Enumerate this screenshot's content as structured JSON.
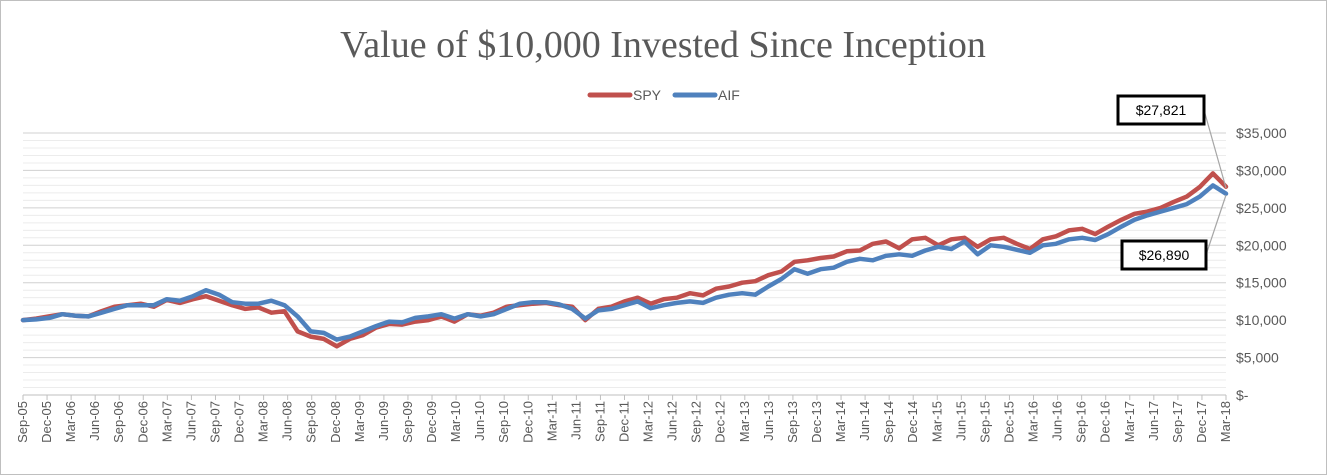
{
  "chart_data": {
    "type": "line",
    "title": "Value of $10,000 Invested Since Inception",
    "xlabel": "",
    "ylabel": "",
    "ylim": [
      0,
      35000
    ],
    "y_tick_labels": [
      "$-",
      "$5,000",
      "$10,000",
      "$15,000",
      "$20,000",
      "$25,000",
      "$30,000",
      "$35,000"
    ],
    "y_ticks": [
      0,
      5000,
      10000,
      15000,
      20000,
      25000,
      30000,
      35000
    ],
    "x_tick_labels": [
      "Sep-05",
      "Dec-05",
      "Mar-06",
      "Jun-06",
      "Sep-06",
      "Dec-06",
      "Mar-07",
      "Jun-07",
      "Sep-07",
      "Dec-07",
      "Mar-08",
      "Jun-08",
      "Sep-08",
      "Dec-08",
      "Mar-09",
      "Jun-09",
      "Sep-09",
      "Dec-09",
      "Mar-10",
      "Jun-10",
      "Sep-10",
      "Dec-10",
      "Mar-11",
      "Jun-11",
      "Sep-11",
      "Dec-11",
      "Mar-12",
      "Jun-12",
      "Sep-12",
      "Dec-12",
      "Mar-13",
      "Jun-13",
      "Sep-13",
      "Dec-13",
      "Mar-14",
      "Jun-14",
      "Sep-14",
      "Dec-14",
      "Mar-15",
      "Jun-15",
      "Sep-15",
      "Dec-15",
      "Mar-16",
      "Jun-16",
      "Sep-16",
      "Dec-16",
      "Mar-17",
      "Jun-17",
      "Sep-17",
      "Dec-17",
      "Mar-18"
    ],
    "grid": true,
    "legend_position": "top",
    "series": [
      {
        "name": "SPY",
        "color": "#c0504d",
        "values": [
          10000,
          10200,
          10500,
          10800,
          10600,
          10500,
          11200,
          11800,
          12000,
          12200,
          11800,
          12700,
          12300,
          12800,
          13200,
          12600,
          12000,
          11500,
          11700,
          11000,
          11200,
          8500,
          7800,
          7500,
          6500,
          7500,
          8000,
          9000,
          9500,
          9400,
          9800,
          10000,
          10500,
          9800,
          10800,
          10600,
          11000,
          11800,
          12000,
          12200,
          12300,
          12000,
          11800,
          10000,
          11500,
          11800,
          12500,
          13000,
          12200,
          12800,
          13000,
          13600,
          13300,
          14200,
          14500,
          15000,
          15200,
          16000,
          16500,
          17800,
          18000,
          18300,
          18500,
          19200,
          19300,
          20200,
          20500,
          19600,
          20800,
          21000,
          20000,
          20800,
          21000,
          19800,
          20800,
          21000,
          20200,
          19500,
          20800,
          21200,
          22000,
          22200,
          21500,
          22500,
          23400,
          24200,
          24500,
          25000,
          25800,
          26500,
          27800,
          29600,
          27821
        ]
      },
      {
        "name": "AIF",
        "color": "#4f81bd",
        "values": [
          10000,
          10100,
          10300,
          10800,
          10600,
          10500,
          11000,
          11500,
          12000,
          12000,
          12000,
          12800,
          12600,
          13200,
          14000,
          13400,
          12400,
          12200,
          12200,
          12600,
          12000,
          10500,
          8500,
          8300,
          7400,
          7800,
          8500,
          9200,
          9800,
          9700,
          10300,
          10500,
          10800,
          10200,
          10800,
          10500,
          10800,
          11500,
          12200,
          12400,
          12400,
          12100,
          11500,
          10200,
          11300,
          11500,
          12000,
          12500,
          11600,
          12000,
          12300,
          12500,
          12300,
          13000,
          13400,
          13600,
          13400,
          14500,
          15500,
          16800,
          16200,
          16800,
          17000,
          17800,
          18200,
          18000,
          18600,
          18800,
          18600,
          19300,
          19800,
          19500,
          20500,
          18800,
          20000,
          19800,
          19400,
          19000,
          20000,
          20200,
          20800,
          21000,
          20700,
          21500,
          22500,
          23400,
          24000,
          24500,
          25000,
          25500,
          26500,
          28000,
          26890
        ]
      }
    ],
    "annotations": [
      {
        "series": "SPY",
        "label": "$27,821",
        "value": 27821
      },
      {
        "series": "AIF",
        "label": "$26,890",
        "value": 26890
      }
    ]
  }
}
